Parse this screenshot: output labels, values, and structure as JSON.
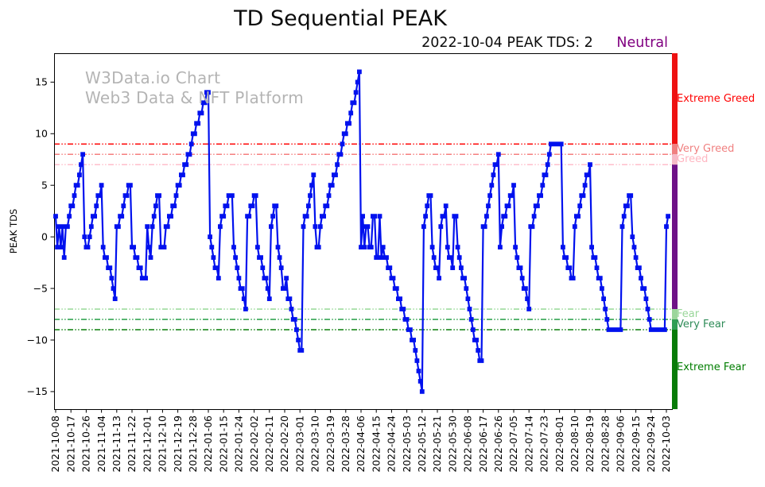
{
  "title": "TD Sequential PEAK",
  "subtitle": {
    "text": "2022-10-04 PEAK TDS: 2",
    "status": "Neutral",
    "status_color": "#800080"
  },
  "watermark": {
    "line1": "W3Data.io Chart",
    "line2": "Web3 Data & NFT Platform"
  },
  "y_axis": {
    "label": "PEAK TDS",
    "ticks": [
      15,
      10,
      5,
      0,
      -5,
      -10,
      -15
    ]
  },
  "zone_labels": [
    {
      "text": "Extreme Greed",
      "color": "#ff0000",
      "y_value": 13.3
    },
    {
      "text": "Very Greed",
      "color": "#f08080",
      "y_value": 8.5
    },
    {
      "text": "Greed",
      "color": "#ffb6c1",
      "y_value": 7.5
    },
    {
      "text": "Fear",
      "color": "#99d699",
      "y_value": -7.5
    },
    {
      "text": "Very Fear",
      "color": "#2e8b57",
      "y_value": -8.5
    },
    {
      "text": "Extreme Fear",
      "color": "#007d00",
      "y_value": -12.7
    }
  ],
  "threshold_lines": [
    {
      "value": 9,
      "color": "#ff0f0f"
    },
    {
      "value": 8,
      "color": "#f57f7f"
    },
    {
      "value": 7,
      "color": "#ffbecb"
    },
    {
      "value": -7,
      "color": "#9fdb9f"
    },
    {
      "value": -8,
      "color": "#35a553"
    },
    {
      "value": -9,
      "color": "#0a7e0a"
    }
  ],
  "colorbar": [
    {
      "from": 17.8,
      "to": 9,
      "color": "#ee1111"
    },
    {
      "from": 9,
      "to": 8,
      "color": "#f08080"
    },
    {
      "from": 8,
      "to": 7,
      "color": "#f6bac7"
    },
    {
      "from": 7,
      "to": -7,
      "color": "#6e1187"
    },
    {
      "from": -7,
      "to": -8,
      "color": "#9cd69c"
    },
    {
      "from": -8,
      "to": -9,
      "color": "#2f9e54"
    },
    {
      "from": -9,
      "to": -16.7,
      "color": "#077b07"
    }
  ],
  "chart_data": {
    "type": "line",
    "series_name": "PEAK TDS",
    "line_color": "#0011ee",
    "marker": "square",
    "start_date": "2021-10-08",
    "end_date": "2022-10-04",
    "cadence": "daily",
    "ylim": [
      -16.7,
      17.8
    ],
    "yticks": [
      15,
      10,
      5,
      0,
      -5,
      -10,
      -15
    ],
    "x_tick_interval_days": 9,
    "x_tick_labels": [
      "2021-10-08",
      "2021-10-17",
      "2021-10-26",
      "2021-11-04",
      "2021-11-13",
      "2021-11-22",
      "2021-12-01",
      "2021-12-10",
      "2021-12-19",
      "2021-12-28",
      "2022-01-06",
      "2022-01-15",
      "2022-01-24",
      "2022-02-02",
      "2022-02-11",
      "2022-02-20",
      "2022-03-01",
      "2022-03-10",
      "2022-03-19",
      "2022-03-28",
      "2022-04-06",
      "2022-04-15",
      "2022-04-24",
      "2022-05-03",
      "2022-05-12",
      "2022-05-21",
      "2022-05-30",
      "2022-06-08",
      "2022-06-17",
      "2022-06-26",
      "2022-07-05",
      "2022-07-14",
      "2022-07-23",
      "2022-08-01",
      "2022-08-10",
      "2022-08-19",
      "2022-08-28",
      "2022-09-06",
      "2022-09-15",
      "2022-09-24",
      "2022-10-03"
    ],
    "values": [
      2,
      -1,
      1,
      -1,
      1,
      -2,
      1,
      1,
      2,
      3,
      3,
      4,
      5,
      5,
      6,
      7,
      8,
      0,
      -1,
      -1,
      0,
      1,
      2,
      2,
      3,
      4,
      4,
      5,
      -1,
      -2,
      -2,
      -3,
      -3,
      -4,
      -5,
      -6,
      1,
      1,
      2,
      2,
      3,
      4,
      4,
      5,
      5,
      -1,
      -1,
      -2,
      -2,
      -3,
      -3,
      -4,
      -4,
      -4,
      1,
      -1,
      -2,
      1,
      2,
      3,
      4,
      4,
      -1,
      -1,
      -1,
      1,
      1,
      2,
      2,
      3,
      3,
      4,
      5,
      5,
      6,
      6,
      7,
      7,
      8,
      8,
      9,
      10,
      10,
      11,
      11,
      12,
      12,
      13,
      13,
      14,
      14,
      0,
      -1,
      -2,
      -3,
      -3,
      -4,
      1,
      2,
      2,
      3,
      3,
      4,
      4,
      4,
      -1,
      -2,
      -3,
      -4,
      -5,
      -5,
      -6,
      -7,
      2,
      2,
      3,
      3,
      4,
      4,
      -1,
      -2,
      -2,
      -3,
      -4,
      -4,
      -5,
      -6,
      1,
      2,
      3,
      3,
      -1,
      -2,
      -3,
      -5,
      -5,
      -4,
      -6,
      -6,
      -7,
      -8,
      -8,
      -9,
      -10,
      -11,
      -11,
      1,
      2,
      2,
      3,
      4,
      5,
      6,
      1,
      -1,
      -1,
      1,
      2,
      2,
      3,
      3,
      4,
      5,
      5,
      6,
      6,
      7,
      8,
      8,
      9,
      10,
      10,
      11,
      11,
      12,
      13,
      13,
      14,
      15,
      16,
      -1,
      2,
      -1,
      1,
      1,
      -1,
      -1,
      2,
      2,
      -2,
      -2,
      2,
      -2,
      -1,
      -2,
      -2,
      -3,
      -3,
      -4,
      -4,
      -5,
      -5,
      -6,
      -6,
      -7,
      -7,
      -8,
      -8,
      -9,
      -9,
      -10,
      -10,
      -11,
      -12,
      -13,
      -14,
      -15,
      1,
      2,
      3,
      4,
      4,
      -1,
      -2,
      -3,
      -3,
      -4,
      1,
      2,
      2,
      3,
      -1,
      -2,
      -2,
      -3,
      2,
      2,
      -1,
      -2,
      -3,
      -4,
      -4,
      -5,
      -6,
      -7,
      -8,
      -9,
      -10,
      -10,
      -11,
      -12,
      -12,
      1,
      1,
      2,
      3,
      4,
      5,
      6,
      7,
      7,
      8,
      -1,
      1,
      2,
      2,
      3,
      3,
      4,
      4,
      5,
      -1,
      -2,
      -3,
      -3,
      -4,
      -5,
      -5,
      -6,
      -7,
      1,
      1,
      2,
      3,
      3,
      4,
      4,
      5,
      6,
      6,
      7,
      8,
      9,
      9,
      9,
      9,
      9,
      9,
      9,
      -1,
      -2,
      -2,
      -3,
      -3,
      -4,
      -4,
      1,
      2,
      2,
      3,
      4,
      4,
      5,
      6,
      6,
      7,
      -1,
      -2,
      -2,
      -3,
      -4,
      -4,
      -5,
      -6,
      -7,
      -8,
      -9,
      -9,
      -9,
      -9,
      -9,
      -9,
      -9,
      -9,
      1,
      2,
      3,
      3,
      4,
      4,
      0,
      -1,
      -2,
      -3,
      -3,
      -4,
      -5,
      -5,
      -6,
      -7,
      -8,
      -9,
      -9,
      -9,
      -9,
      -9,
      -9,
      -9,
      -9,
      -9,
      1,
      2
    ]
  }
}
